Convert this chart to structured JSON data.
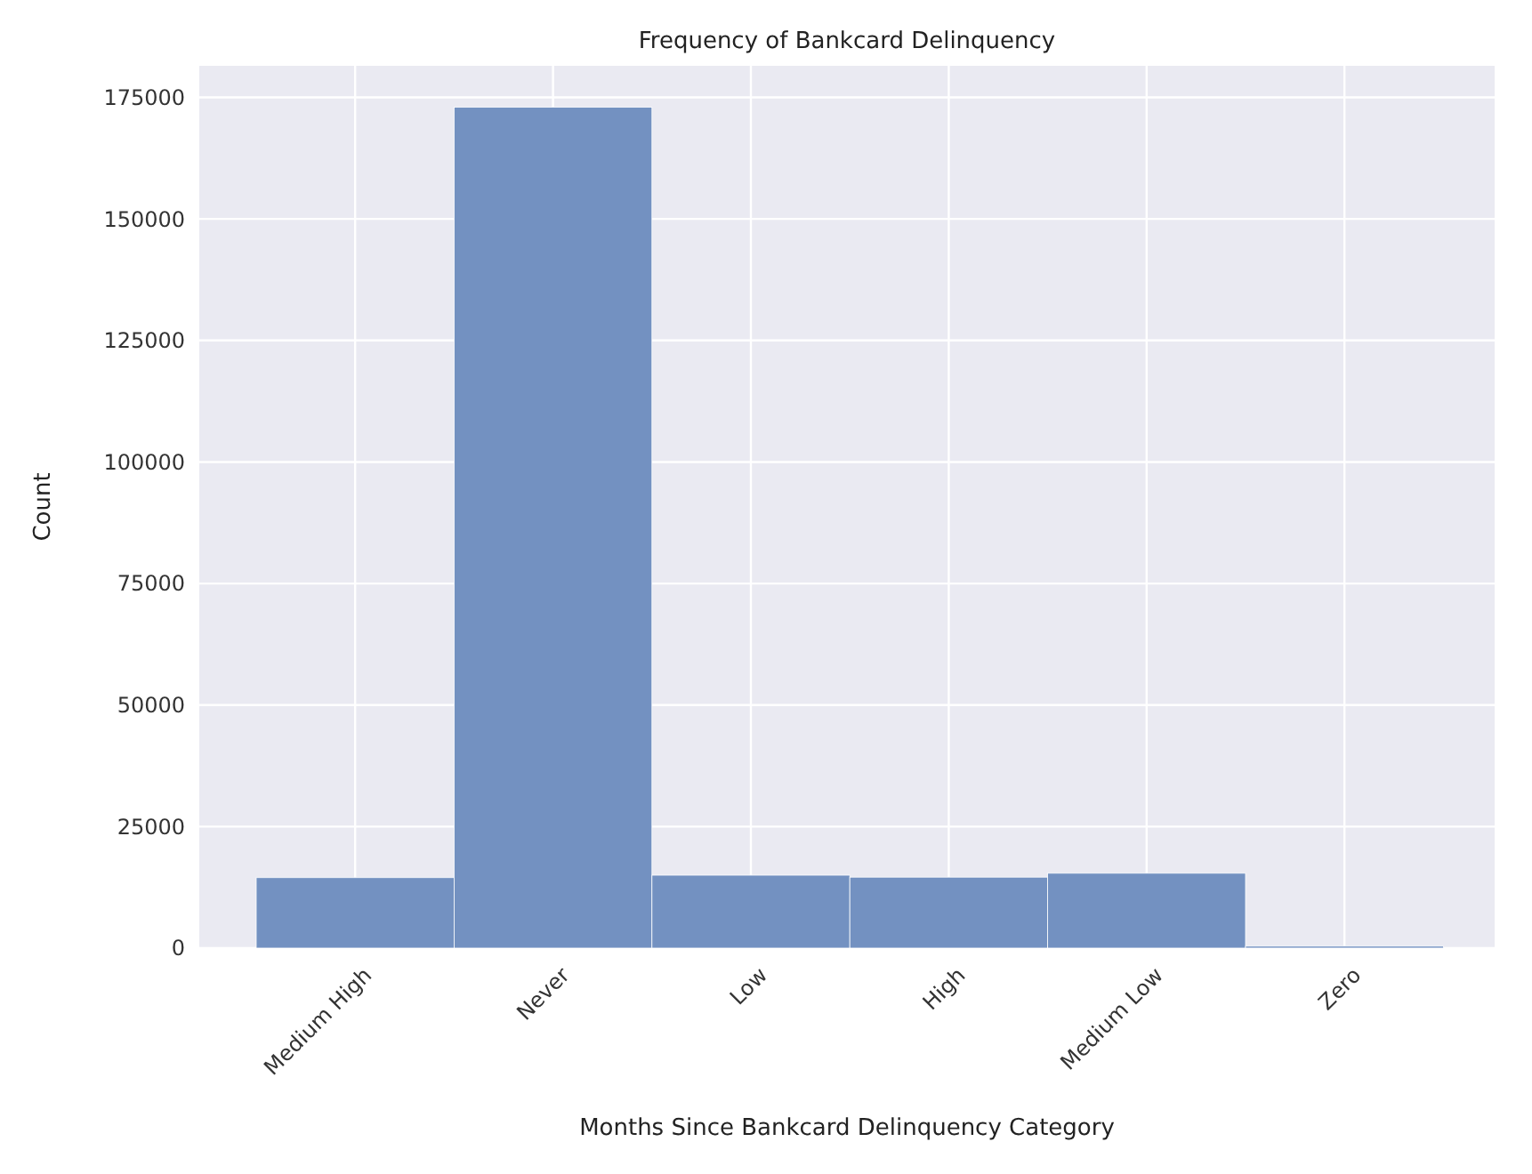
{
  "chart_data": {
    "type": "bar",
    "title": "Frequency of Bankcard Delinquency",
    "xlabel": "Months Since Bankcard Delinquency Category",
    "ylabel": "Count",
    "categories": [
      "Medium High",
      "Never",
      "Low",
      "High",
      "Medium Low",
      "Zero"
    ],
    "values": [
      14500,
      173000,
      15000,
      14600,
      15400,
      400
    ],
    "color": "#7391c1",
    "ylim": [
      0,
      181500
    ],
    "yticks": [
      0,
      25000,
      50000,
      75000,
      100000,
      125000,
      150000,
      175000
    ],
    "grid": true
  }
}
